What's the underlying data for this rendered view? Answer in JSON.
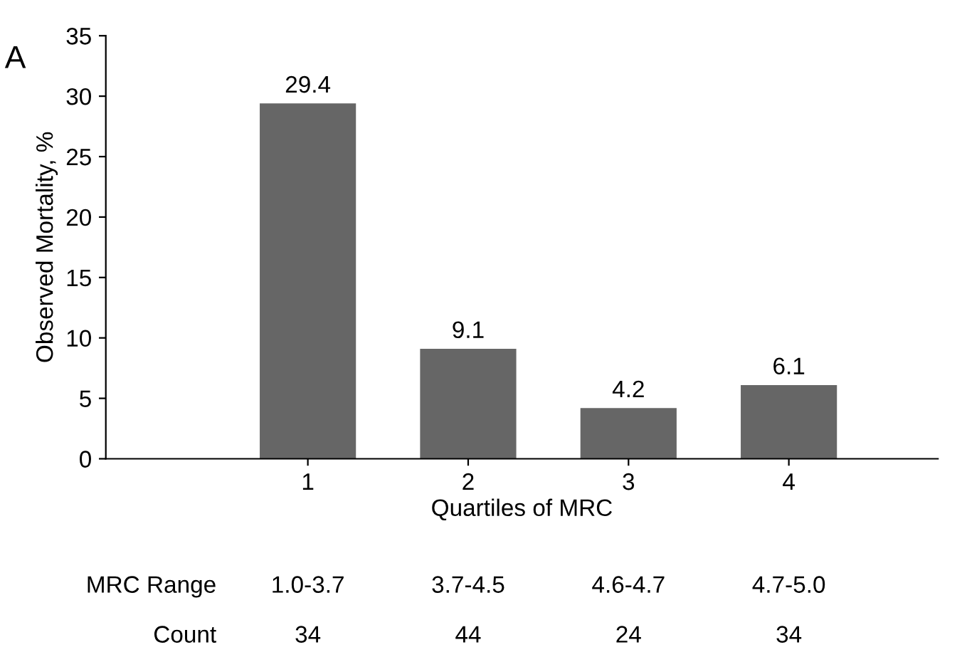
{
  "chart_data": {
    "type": "bar",
    "ylabel": "Observed Mortality, %",
    "xlabel": "Quartiles of MRC",
    "categories": [
      "1",
      "2",
      "3",
      "4"
    ],
    "values": [
      29.4,
      9.1,
      4.2,
      6.1
    ],
    "color": "#666666",
    "ylim": [
      0,
      35
    ],
    "yticks": [
      0,
      5,
      10,
      15,
      20,
      25,
      30,
      35
    ],
    "grid": false,
    "data_labels": true,
    "annotations": [
      "A",
      "MRC Range",
      "1.0-3.7",
      "3.7-4.5",
      "4.6-4.7",
      "4.7-5.0",
      "Count",
      "34",
      "44",
      "24",
      "34"
    ]
  }
}
